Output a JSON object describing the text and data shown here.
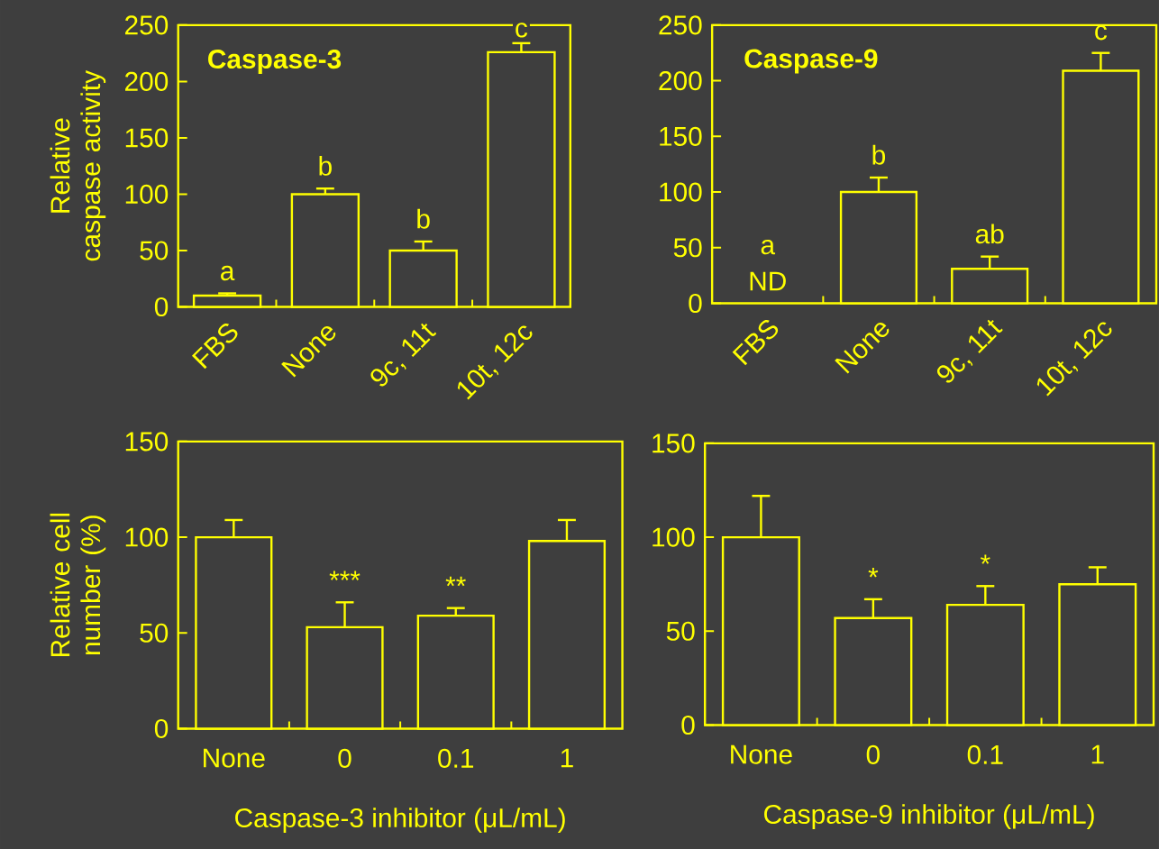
{
  "chart_data": [
    {
      "type": "bar",
      "title": "Caspase-3",
      "ylabel": "Relative caspase activity",
      "categories": [
        "FBS",
        "None",
        "9c, 11t",
        "10t, 12c"
      ],
      "values": [
        10,
        100,
        50,
        226
      ],
      "errors": [
        2,
        5,
        8,
        8
      ],
      "value_labels": [
        "a",
        "b",
        "b",
        "c"
      ],
      "color": "#ffff00",
      "ylim": [
        0,
        250
      ],
      "yticks": [
        0,
        50,
        100,
        150,
        200,
        250
      ]
    },
    {
      "type": "bar",
      "title": "Caspase-9",
      "categories": [
        "FBS",
        "None",
        "9c, 11t",
        "10t, 12c"
      ],
      "values": [
        null,
        100,
        31,
        209
      ],
      "errors": [
        null,
        13,
        11,
        16
      ],
      "value_labels": [
        "a",
        "b",
        "ab",
        "c"
      ],
      "color": "#ffff00",
      "ylim": [
        0,
        250
      ],
      "yticks": [
        0,
        50,
        100,
        150,
        200,
        250
      ],
      "annotations": [
        "ND"
      ]
    },
    {
      "type": "bar",
      "xlabel": "Caspase-3 inhibitor (μL/mL)",
      "ylabel": "Relative cell number (%)",
      "categories": [
        "None",
        "0",
        "0.1",
        "1"
      ],
      "values": [
        100,
        53,
        59,
        98
      ],
      "errors": [
        9,
        13,
        4,
        11
      ],
      "value_labels": [
        null,
        "***",
        "**",
        null
      ],
      "color": "#ffff00",
      "ylim": [
        0,
        150
      ],
      "yticks": [
        0,
        50,
        100,
        150
      ]
    },
    {
      "type": "bar",
      "xlabel": "Caspase-9 inhibitor (μL/mL)",
      "categories": [
        "None",
        "0",
        "0.1",
        "1"
      ],
      "values": [
        100,
        57,
        64,
        75
      ],
      "errors": [
        22,
        10,
        10,
        9
      ],
      "value_labels": [
        null,
        "*",
        "*",
        null
      ],
      "color": "#ffff00",
      "ylim": [
        0,
        150
      ],
      "yticks": [
        0,
        50,
        100,
        150
      ]
    }
  ]
}
